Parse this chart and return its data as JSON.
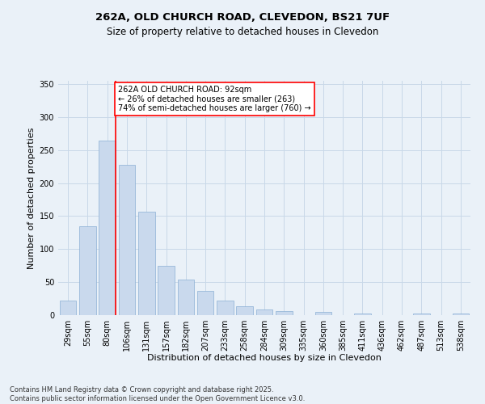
{
  "title_line1": "262A, OLD CHURCH ROAD, CLEVEDON, BS21 7UF",
  "title_line2": "Size of property relative to detached houses in Clevedon",
  "xlabel": "Distribution of detached houses by size in Clevedon",
  "ylabel": "Number of detached properties",
  "categories": [
    "29sqm",
    "55sqm",
    "80sqm",
    "106sqm",
    "131sqm",
    "157sqm",
    "182sqm",
    "207sqm",
    "233sqm",
    "258sqm",
    "284sqm",
    "309sqm",
    "335sqm",
    "360sqm",
    "385sqm",
    "411sqm",
    "436sqm",
    "462sqm",
    "487sqm",
    "513sqm",
    "538sqm"
  ],
  "values": [
    22,
    135,
    265,
    228,
    157,
    75,
    54,
    37,
    22,
    13,
    9,
    6,
    0,
    5,
    0,
    3,
    0,
    0,
    2,
    0,
    2
  ],
  "bar_color": "#c9d9ed",
  "bar_edge_color": "#8bafd4",
  "grid_color": "#c8d8e8",
  "background_color": "#eaf1f8",
  "property_line_color": "red",
  "annotation_text": "262A OLD CHURCH ROAD: 92sqm\n← 26% of detached houses are smaller (263)\n74% of semi-detached houses are larger (760) →",
  "annotation_box_color": "white",
  "annotation_box_edge_color": "red",
  "ylim": [
    0,
    355
  ],
  "yticks": [
    0,
    50,
    100,
    150,
    200,
    250,
    300,
    350
  ],
  "footer_line1": "Contains HM Land Registry data © Crown copyright and database right 2025.",
  "footer_line2": "Contains public sector information licensed under the Open Government Licence v3.0.",
  "title_fontsize": 9.5,
  "subtitle_fontsize": 8.5,
  "axis_label_fontsize": 8.0,
  "tick_fontsize": 7.0,
  "annotation_fontsize": 7.0,
  "footer_fontsize": 6.0
}
